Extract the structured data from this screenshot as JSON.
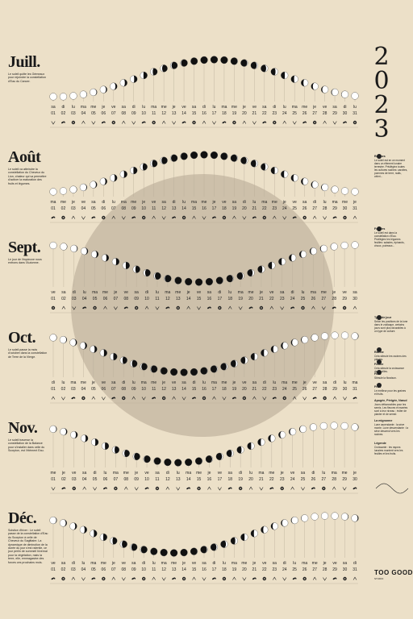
{
  "year_digits": [
    "2",
    "0",
    "2",
    "3"
  ],
  "colors": {
    "background": "#ece0c8",
    "sun_disc": "#c8baa4",
    "moon_dark": "#111111",
    "moon_light": "#ffffff",
    "guide": "#b9ad99"
  },
  "months": [
    {
      "title": "Juill.",
      "days": 31,
      "start_weekday": "sa",
      "desc": "Le soleil quitte les Gémeaux pour rejoindre la constellation d'Eau du Cancer.",
      "new_moon_day": 17,
      "moon_phase_trend": "peak"
    },
    {
      "title": "Août",
      "days": 31,
      "start_weekday": "ma",
      "desc": "Le soleil va atteindre la constellation du Cheveux du Lion, chaleur qui va permettre d'activer la maturation des fruits et légumes.",
      "new_moon_day": 16,
      "moon_phase_trend": "peak"
    },
    {
      "title": "Sept.",
      "days": 30,
      "start_weekday": "ve",
      "desc": "Le jour de l'équinoxe nous entrons dans l'Automne.",
      "new_moon_day": 15,
      "moon_phase_trend": "dip"
    },
    {
      "title": "Oct.",
      "days": 31,
      "start_weekday": "di",
      "desc": "Le soleil passe la mois d'octobre dans la constellation de Terre de la Vierge.",
      "new_moon_day": 14,
      "moon_phase_trend": "dip"
    },
    {
      "title": "Nov.",
      "days": 30,
      "start_weekday": "me",
      "desc": "Le soleil traverse la constellation de la Balance pour s'installer dans celle du Scorpion, est l'élément Eau.",
      "new_moon_day": 13,
      "moon_phase_trend": "dip"
    },
    {
      "title": "Déc.",
      "days": 31,
      "start_weekday": "ve",
      "desc": "Solstice d'hiver : Le soleil passe de la constellation d'Eau du Scorpion à celle de Cheveux du Sagittaire. La dynamique de diminution de la durée du jour s'est ralentie, ce jour perlin de sommeil hivernal pour la végétation, mais la terre, elle, emmagasine des forces ces prochains mois.",
      "new_moon_day": 13,
      "moon_phase_trend": "dip"
    }
  ],
  "weekdays": [
    "lu",
    "ma",
    "me",
    "je",
    "ve",
    "sa",
    "di"
  ],
  "legend": [
    {
      "title": "Racines",
      "text": "Le soleil est en ce moment dans un élément lunaire terrestre. Privilégiez toutes les cultures racines: carottes, pommes de terre, radis, céleri..."
    },
    {
      "title": "Feuilles",
      "text": "Le soleil est dans la constellation d'Eau. Privilégiez les légumes feuilles: salades, épinards, choux, poireaux..."
    },
    {
      "title": "Type de jour",
      "text": "Selon les positions de la lune dans le zodiaque, certains jours sont plus favorables à un type de culture."
    },
    {
      "title": "Racine",
      "text": "Cela stimule les racines des plantes."
    },
    {
      "title": "Feuille",
      "text": "Cela stimule la croissance des feuilles."
    },
    {
      "title": "Fleur",
      "text": "Stimule la floraison."
    },
    {
      "title": "Fruit",
      "text": "Le meilleur pour les graines et fruits."
    },
    {
      "title": "Apogée, Périgée, Nœud",
      "text": "Jours défavorables pour les semis. Les fleuves et marées sont à leur niveau ; éviter de planter et de semer."
    },
    {
      "title": "La mignonne",
      "text": "Lune ascendante : la sève monte. Lune descendante : la sève descend vers les racines."
    },
    {
      "title": "Légende",
      "text": "Croissante : les rayons lunaires montent vers les feuilles et les fruits."
    }
  ],
  "logo": "TOO GOOD",
  "logo_sub": "STUDIO"
}
